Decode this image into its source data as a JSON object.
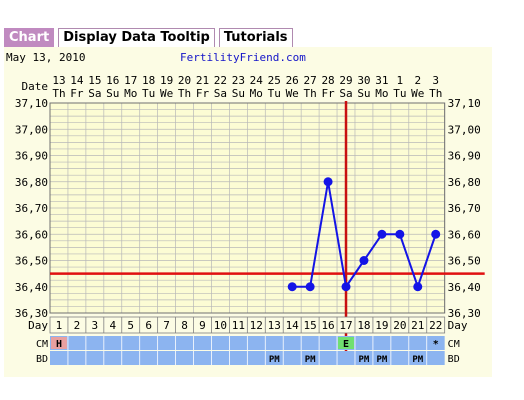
{
  "tabs": [
    {
      "label": "Chart"
    },
    {
      "label": "Display Data Tooltip"
    },
    {
      "label": "Tutorials"
    }
  ],
  "header": {
    "date_text": "May 13, 2010",
    "site": "FertilityFriend.com"
  },
  "colors": {
    "panel_bg": "#fcfce4",
    "grid_bg": "#fcfcd4",
    "grid_line": "#b8b8b8",
    "temp_line": "#1414e6",
    "coverline": "#e01010",
    "ovulation_line": "#c81010",
    "band": "#8cb4f0",
    "h_cell": "#e8a0a0",
    "e_cell": "#70e070"
  },
  "chart_data": {
    "type": "line",
    "title": "",
    "row_labels": {
      "date": "Date",
      "day": "Day",
      "cm": "CM",
      "bd": "BD"
    },
    "dates": [
      "13",
      "14",
      "15",
      "16",
      "17",
      "18",
      "19",
      "20",
      "21",
      "22",
      "23",
      "24",
      "25",
      "26",
      "27",
      "28",
      "29",
      "30",
      "31",
      "1",
      "2",
      "3"
    ],
    "weekdays": [
      "Th",
      "Fr",
      "Sa",
      "Su",
      "Mo",
      "Tu",
      "We",
      "Th",
      "Fr",
      "Sa",
      "Su",
      "Mo",
      "Tu",
      "We",
      "Th",
      "Fr",
      "Sa",
      "Su",
      "Mo",
      "Tu",
      "We",
      "Th"
    ],
    "days": [
      1,
      2,
      3,
      4,
      5,
      6,
      7,
      8,
      9,
      10,
      11,
      12,
      13,
      14,
      15,
      16,
      17,
      18,
      19,
      20,
      21,
      22
    ],
    "y_ticks": [
      "37,10",
      "37,00",
      "36,90",
      "36,80",
      "36,70",
      "36,60",
      "36,50",
      "36,40",
      "36,30"
    ],
    "ylim": [
      36.3,
      37.1
    ],
    "series": [
      {
        "values": [
          null,
          null,
          null,
          null,
          null,
          null,
          null,
          null,
          null,
          null,
          null,
          null,
          null,
          36.4,
          36.4,
          36.8,
          36.4,
          36.5,
          36.6,
          36.6,
          36.4,
          36.6
        ]
      }
    ],
    "coverline": 36.45,
    "ovulation_day": 17,
    "cm": [
      "H",
      "",
      "",
      "",
      "",
      "",
      "",
      "",
      "",
      "",
      "",
      "",
      "",
      "",
      "",
      "",
      "E",
      "",
      "",
      "",
      "",
      "*"
    ],
    "bd": [
      "",
      "",
      "",
      "",
      "",
      "",
      "",
      "",
      "",
      "",
      "",
      "",
      "PM",
      "",
      "PM",
      "",
      "",
      "PM",
      "PM",
      "",
      "PM",
      ""
    ]
  }
}
